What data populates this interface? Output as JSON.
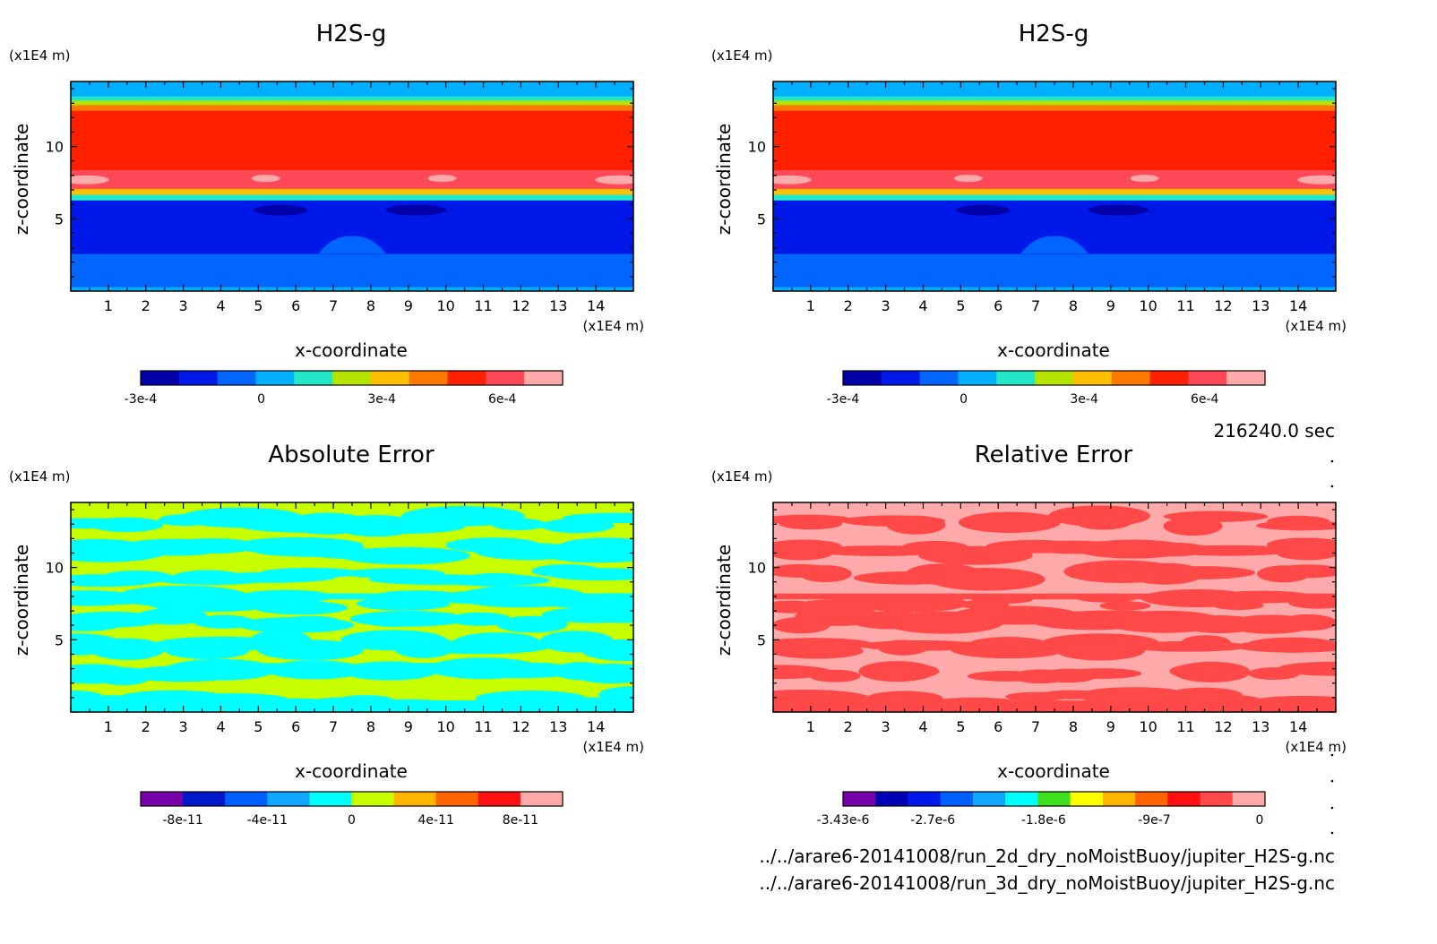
{
  "figure": {
    "time_label": "216240.0 sec",
    "files": [
      "../../arare6-20141008/run_2d_dry_noMoistBuoy/jupiter_H2S-g.nc",
      "../../arare6-20141008/run_3d_dry_noMoistBuoy/jupiter_H2S-g.nc"
    ]
  },
  "chart_data": [
    {
      "type": "heatmap",
      "title": "H2S-g",
      "xlabel": "x-coordinate",
      "ylabel": "z-coordinate",
      "x_unit": "(x1E4 m)",
      "y_unit": "(x1E4 m)",
      "xlim": [
        0,
        15
      ],
      "ylim": [
        0,
        14.5
      ],
      "xticks": [
        "1",
        "2",
        "3",
        "4",
        "5",
        "6",
        "7",
        "8",
        "9",
        "10",
        "11",
        "12",
        "13",
        "14"
      ],
      "yticks": [
        "5",
        "10"
      ],
      "colorbar": {
        "colors": [
          "#0000a8",
          "#0018e8",
          "#0066ff",
          "#00b0ff",
          "#22e8c8",
          "#b4e400",
          "#ffc000",
          "#ff7800",
          "#ff2000",
          "#ff4858",
          "#ffaaaa"
        ],
        "tick_labels": [
          "-3e-4",
          "0",
          "3e-4",
          "6e-4"
        ],
        "tick_values": [
          -0.0003,
          0,
          0.0003,
          0.0006
        ],
        "range": [
          -0.0003,
          0.00075
        ]
      },
      "fields": {
        "layers": [
          {
            "z": [
              0,
              0.3
            ],
            "value_color": "#00b0ff"
          },
          {
            "z": [
              0.3,
              2.6
            ],
            "value_color": "#0066ff"
          },
          {
            "z": [
              2.6,
              6.3
            ],
            "value_color": "#0018e8"
          },
          {
            "z": [
              6.3,
              6.7
            ],
            "value_color": "#22e8c8"
          },
          {
            "z": [
              6.7,
              7.1
            ],
            "value_color": "#ffc000"
          },
          {
            "z": [
              7.1,
              8.4
            ],
            "value_color": "#ff4858"
          },
          {
            "z": [
              8.4,
              12.5
            ],
            "value_color": "#ff2000"
          },
          {
            "z": [
              12.5,
              12.9
            ],
            "value_color": "#ff7800"
          },
          {
            "z": [
              12.9,
              13.2
            ],
            "value_color": "#b4e400"
          },
          {
            "z": [
              13.2,
              13.5
            ],
            "value_color": "#22e8c8"
          },
          {
            "z": [
              13.5,
              14.5
            ],
            "value_color": "#00b0ff"
          }
        ]
      }
    },
    {
      "type": "heatmap",
      "title": "H2S-g",
      "xlabel": "x-coordinate",
      "ylabel": "z-coordinate",
      "x_unit": "(x1E4 m)",
      "y_unit": "(x1E4 m)",
      "xlim": [
        0,
        15
      ],
      "ylim": [
        0,
        14.5
      ],
      "xticks": [
        "1",
        "2",
        "3",
        "4",
        "5",
        "6",
        "7",
        "8",
        "9",
        "10",
        "11",
        "12",
        "13",
        "14"
      ],
      "yticks": [
        "5",
        "10"
      ],
      "colorbar": {
        "colors": [
          "#0000a8",
          "#0018e8",
          "#0066ff",
          "#00b0ff",
          "#22e8c8",
          "#b4e400",
          "#ffc000",
          "#ff7800",
          "#ff2000",
          "#ff4858",
          "#ffaaaa"
        ],
        "tick_labels": [
          "-3e-4",
          "0",
          "3e-4",
          "6e-4"
        ],
        "tick_values": [
          -0.0003,
          0,
          0.0003,
          0.0006
        ],
        "range": [
          -0.0003,
          0.00075
        ]
      },
      "fields": {
        "layers": [
          {
            "z": [
              0,
              0.3
            ],
            "value_color": "#00b0ff"
          },
          {
            "z": [
              0.3,
              2.6
            ],
            "value_color": "#0066ff"
          },
          {
            "z": [
              2.6,
              6.3
            ],
            "value_color": "#0018e8"
          },
          {
            "z": [
              6.3,
              6.7
            ],
            "value_color": "#22e8c8"
          },
          {
            "z": [
              6.7,
              7.1
            ],
            "value_color": "#ffc000"
          },
          {
            "z": [
              7.1,
              8.4
            ],
            "value_color": "#ff4858"
          },
          {
            "z": [
              8.4,
              12.5
            ],
            "value_color": "#ff2000"
          },
          {
            "z": [
              12.5,
              12.9
            ],
            "value_color": "#ff7800"
          },
          {
            "z": [
              12.9,
              13.2
            ],
            "value_color": "#b4e400"
          },
          {
            "z": [
              13.2,
              13.5
            ],
            "value_color": "#22e8c8"
          },
          {
            "z": [
              13.5,
              14.5
            ],
            "value_color": "#00b0ff"
          }
        ]
      }
    },
    {
      "type": "heatmap",
      "title": "Absolute Error",
      "xlabel": "x-coordinate",
      "ylabel": "z-coordinate",
      "x_unit": "(x1E4 m)",
      "y_unit": "(x1E4 m)",
      "xlim": [
        0,
        15
      ],
      "ylim": [
        0,
        14.5
      ],
      "xticks": [
        "1",
        "2",
        "3",
        "4",
        "5",
        "6",
        "7",
        "8",
        "9",
        "10",
        "11",
        "12",
        "13",
        "14"
      ],
      "yticks": [
        "5",
        "10"
      ],
      "colorbar": {
        "colors": [
          "#7800a8",
          "#0018c8",
          "#0060ff",
          "#10a8ff",
          "#00ffff",
          "#c8ff00",
          "#ffb400",
          "#ff6400",
          "#ff1010",
          "#ffaaaa"
        ],
        "tick_labels": [
          "-8e-11",
          "-4e-11",
          "0",
          "4e-11",
          "8e-11"
        ],
        "tick_values": [
          -8e-11,
          -4e-11,
          0,
          4e-11,
          8e-11
        ],
        "range": [
          -1e-10,
          1e-10
        ]
      },
      "fields": {
        "background_color": "#c8ff00",
        "pattern_color": "#00ffff"
      }
    },
    {
      "type": "heatmap",
      "title": "Relative Error",
      "xlabel": "x-coordinate",
      "ylabel": "z-coordinate",
      "x_unit": "(x1E4 m)",
      "y_unit": "(x1E4 m)",
      "xlim": [
        0,
        15
      ],
      "ylim": [
        0,
        14.5
      ],
      "xticks": [
        "1",
        "2",
        "3",
        "4",
        "5",
        "6",
        "7",
        "8",
        "9",
        "10",
        "11",
        "12",
        "13",
        "14"
      ],
      "yticks": [
        "5",
        "10"
      ],
      "colorbar": {
        "colors": [
          "#7800a8",
          "#0000b4",
          "#0018e8",
          "#0060ff",
          "#10a8ff",
          "#00ffff",
          "#40e020",
          "#ffff00",
          "#ffb400",
          "#ff6400",
          "#ff1010",
          "#ff4848",
          "#ffaaaa"
        ],
        "tick_labels": [
          "-3.43e-6",
          "-2.7e-6",
          "-1.8e-6",
          "-9e-7",
          "0"
        ],
        "tick_values": [
          -3.43e-06,
          -2.7e-06,
          -1.8e-06,
          -9e-07,
          0
        ],
        "range": [
          -3.43e-06,
          0
        ]
      },
      "fields": {
        "background_color": "#ffaaaa",
        "pattern_color": "#ff4848"
      }
    }
  ]
}
